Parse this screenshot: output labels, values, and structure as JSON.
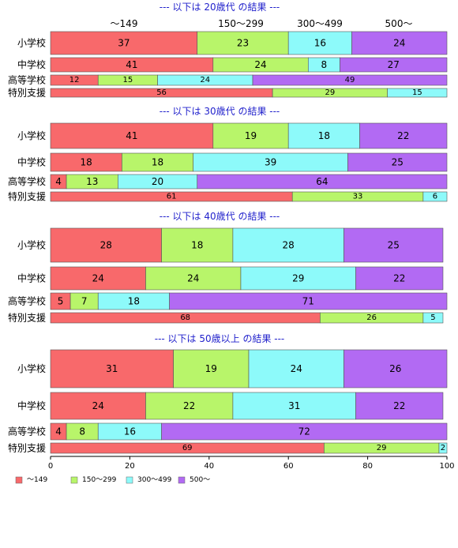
{
  "chart_data": {
    "type": "bar",
    "orientation": "horizontal",
    "stacked": true,
    "xlim": [
      0,
      100
    ],
    "x_ticks": [
      "0",
      "20",
      "40",
      "60",
      "80",
      "100"
    ],
    "grid": false,
    "legend_placement": "bottom-left",
    "series": [
      {
        "name": "～149",
        "color": "#f8696b"
      },
      {
        "name": "150～299",
        "color": "#b8f56a"
      },
      {
        "name": "300～499",
        "color": "#8dfafa"
      },
      {
        "name": "500～",
        "color": "#b26af3"
      }
    ],
    "column_headers": [
      "～149",
      "150～299",
      "300～499",
      "500～"
    ],
    "panels": [
      {
        "title": "--- 以下は 20歳代 の結果 ---",
        "bars": [
          {
            "label": "小学校",
            "values": [
              37,
              23,
              16,
              24
            ]
          },
          {
            "label": "中学校",
            "values": [
              41,
              24,
              8,
              27
            ]
          },
          {
            "label": "高等学校",
            "values": [
              12,
              15,
              24,
              49
            ]
          },
          {
            "label": "特別支援",
            "values": [
              56,
              29,
              15,
              0
            ]
          }
        ]
      },
      {
        "title": "--- 以下は 30歳代 の結果 ---",
        "bars": [
          {
            "label": "小学校",
            "values": [
              41,
              19,
              18,
              22
            ]
          },
          {
            "label": "中学校",
            "values": [
              18,
              18,
              39,
              25
            ]
          },
          {
            "label": "高等学校",
            "values": [
              4,
              13,
              20,
              64
            ]
          },
          {
            "label": "特別支援",
            "values": [
              61,
              33,
              6,
              0
            ]
          }
        ]
      },
      {
        "title": "--- 以下は 40歳代 の結果 ---",
        "bars": [
          {
            "label": "小学校",
            "values": [
              28,
              18,
              28,
              25
            ]
          },
          {
            "label": "中学校",
            "values": [
              24,
              24,
              29,
              22
            ]
          },
          {
            "label": "高等学校",
            "values": [
              5,
              7,
              18,
              71
            ]
          },
          {
            "label": "特別支援",
            "values": [
              68,
              26,
              5,
              0
            ]
          }
        ]
      },
      {
        "title": "--- 以下は 50歳以上 の結果 ---",
        "bars": [
          {
            "label": "小学校",
            "values": [
              31,
              19,
              24,
              26
            ]
          },
          {
            "label": "中学校",
            "values": [
              24,
              22,
              31,
              22
            ]
          },
          {
            "label": "高等学校",
            "values": [
              4,
              8,
              16,
              72
            ]
          },
          {
            "label": "特別支援",
            "values": [
              69,
              29,
              2,
              0
            ]
          }
        ]
      }
    ]
  }
}
